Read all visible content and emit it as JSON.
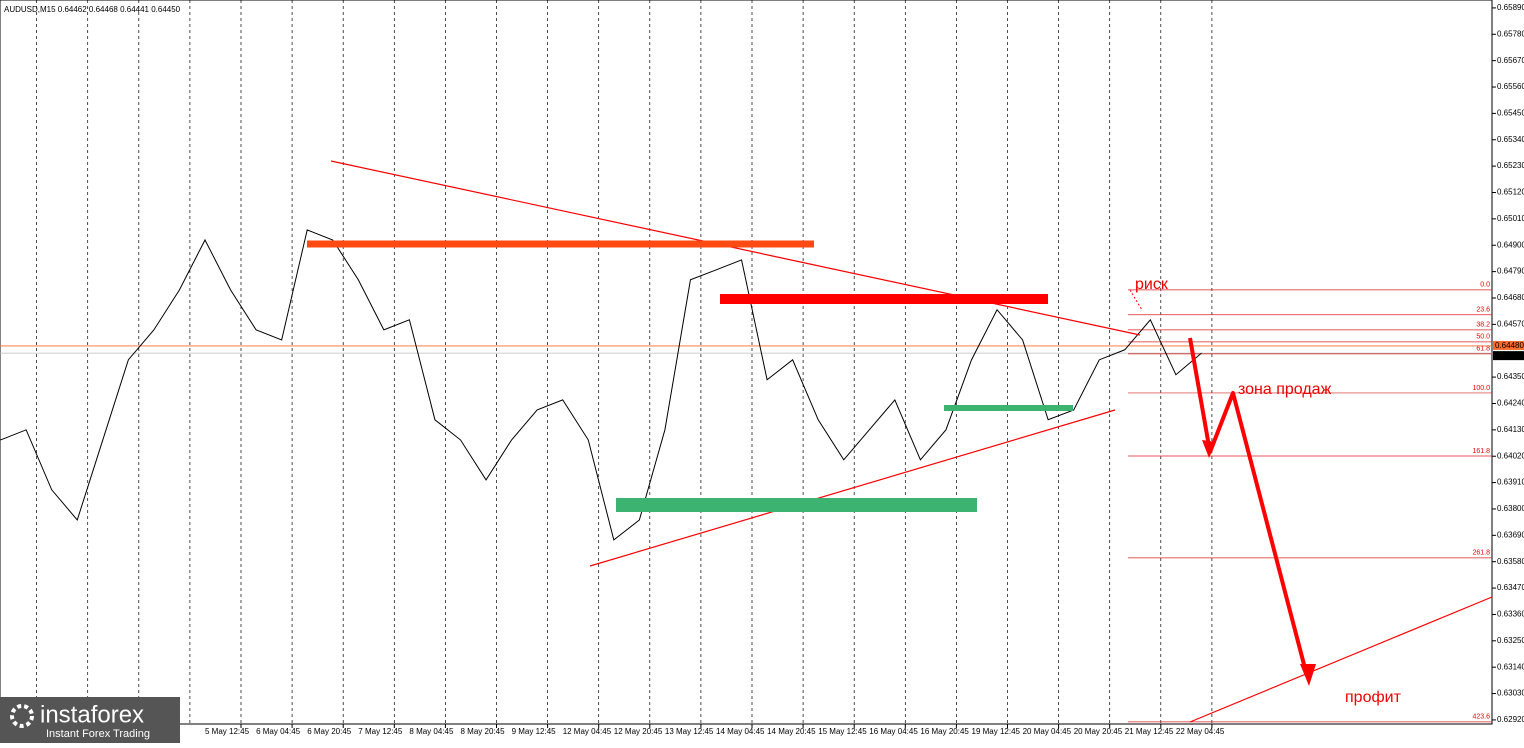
{
  "chart_data": {
    "type": "line",
    "title": "AUDUSD,M15  0.64462 0.64468 0.64441 0.64450",
    "categories": [
      null,
      null,
      null,
      null,
      null,
      null,
      null,
      null,
      "5 May 12:45",
      null,
      "6 May 04:45",
      null,
      "6 May 20:45",
      null,
      "7 May 12:45",
      null,
      "8 May 04:45",
      null,
      "8 May 20:45",
      null,
      "9 May 12:45",
      null,
      "12 May 04:45",
      null,
      "12 May 20:45",
      null,
      "13 May 12:45",
      null,
      "14 May 04:45",
      null,
      "14 May 20:45",
      null,
      "15 May 12:45",
      null,
      "16 May 04:45",
      null,
      "16 May 20:45",
      null,
      "19 May 12:45",
      null,
      "20 May 04:45",
      null,
      "20 May 20:45",
      null,
      "21 May 12:45",
      null,
      "22 May 04:45",
      null
    ],
    "values": [
      0.64088,
      0.6413,
      0.6388,
      0.63754,
      0.64088,
      0.64422,
      0.64547,
      0.64714,
      0.64922,
      0.64714,
      0.64547,
      0.64505,
      0.64964,
      0.64922,
      0.64756,
      0.64547,
      0.64589,
      0.64172,
      0.64088,
      0.63921,
      0.64088,
      0.64213,
      0.64255,
      0.64088,
      0.63671,
      0.63754,
      0.6413,
      0.64756,
      0.64797,
      0.64839,
      0.64339,
      0.64422,
      0.64172,
      0.64005,
      0.6413,
      0.64255,
      0.64005,
      0.6413,
      0.64422,
      0.64631,
      0.64505,
      0.64172,
      0.64213,
      0.64422,
      0.64464,
      0.64589,
      0.6436,
      0.6445
    ],
    "color": "#000000",
    "ylim": [
      0.62903,
      0.65923
    ],
    "yticks": [
      {
        "value": 0.6589,
        "label": "0.65890"
      },
      {
        "value": 0.6578,
        "label": "0.65780"
      },
      {
        "value": 0.6567,
        "label": "0.65670"
      },
      {
        "value": 0.6556,
        "label": "0.65560"
      },
      {
        "value": 0.6545,
        "label": "0.65450"
      },
      {
        "value": 0.6534,
        "label": "0.65340"
      },
      {
        "value": 0.6523,
        "label": "0.65230"
      },
      {
        "value": 0.6512,
        "label": "0.65120"
      },
      {
        "value": 0.6501,
        "label": "0.65010"
      },
      {
        "value": 0.649,
        "label": "0.64900"
      },
      {
        "value": 0.6479,
        "label": "0.64790"
      },
      {
        "value": 0.6468,
        "label": "0.64680"
      },
      {
        "value": 0.6457,
        "label": "0.64570"
      },
      {
        "value": 0.6435,
        "label": "0.64350"
      },
      {
        "value": 0.6424,
        "label": "0.64240"
      },
      {
        "value": 0.6413,
        "label": "0.64130"
      },
      {
        "value": 0.6402,
        "label": "0.64020"
      },
      {
        "value": 0.6391,
        "label": "0.63910"
      },
      {
        "value": 0.638,
        "label": "0.63800"
      },
      {
        "value": 0.6369,
        "label": "0.63690"
      },
      {
        "value": 0.6358,
        "label": "0.63580"
      },
      {
        "value": 0.6347,
        "label": "0.63470"
      },
      {
        "value": 0.6336,
        "label": "0.63360"
      },
      {
        "value": 0.6325,
        "label": "0.63250"
      },
      {
        "value": 0.6314,
        "label": "0.63140"
      },
      {
        "value": 0.6303,
        "label": "0.63030"
      },
      {
        "value": 0.6292,
        "label": "0.62920"
      }
    ],
    "price_markers": [
      {
        "value": 0.6448,
        "label": "0.64480",
        "color": "#ff6a2a"
      },
      {
        "value": 0.6445,
        "label": "0.64450",
        "color": "#000000"
      }
    ],
    "fib_levels": [
      {
        "label": "0.0",
        "price": 0.64714
      },
      {
        "label": "23.6",
        "price": 0.6461
      },
      {
        "label": "38.2",
        "price": 0.64547
      },
      {
        "label": "50.0",
        "price": 0.64497
      },
      {
        "label": "61.8",
        "price": 0.64447
      },
      {
        "label": "100.0",
        "price": 0.64284
      },
      {
        "label": "161.8",
        "price": 0.64021
      },
      {
        "label": "261.8",
        "price": 0.63596
      },
      {
        "label": "423.6",
        "price": 0.62912
      }
    ],
    "annotations": [
      "риск",
      "зона продаж",
      "профит"
    ],
    "grid": true
  },
  "logo": {
    "name": "instaforex",
    "tagline": "Instant Forex Trading"
  }
}
